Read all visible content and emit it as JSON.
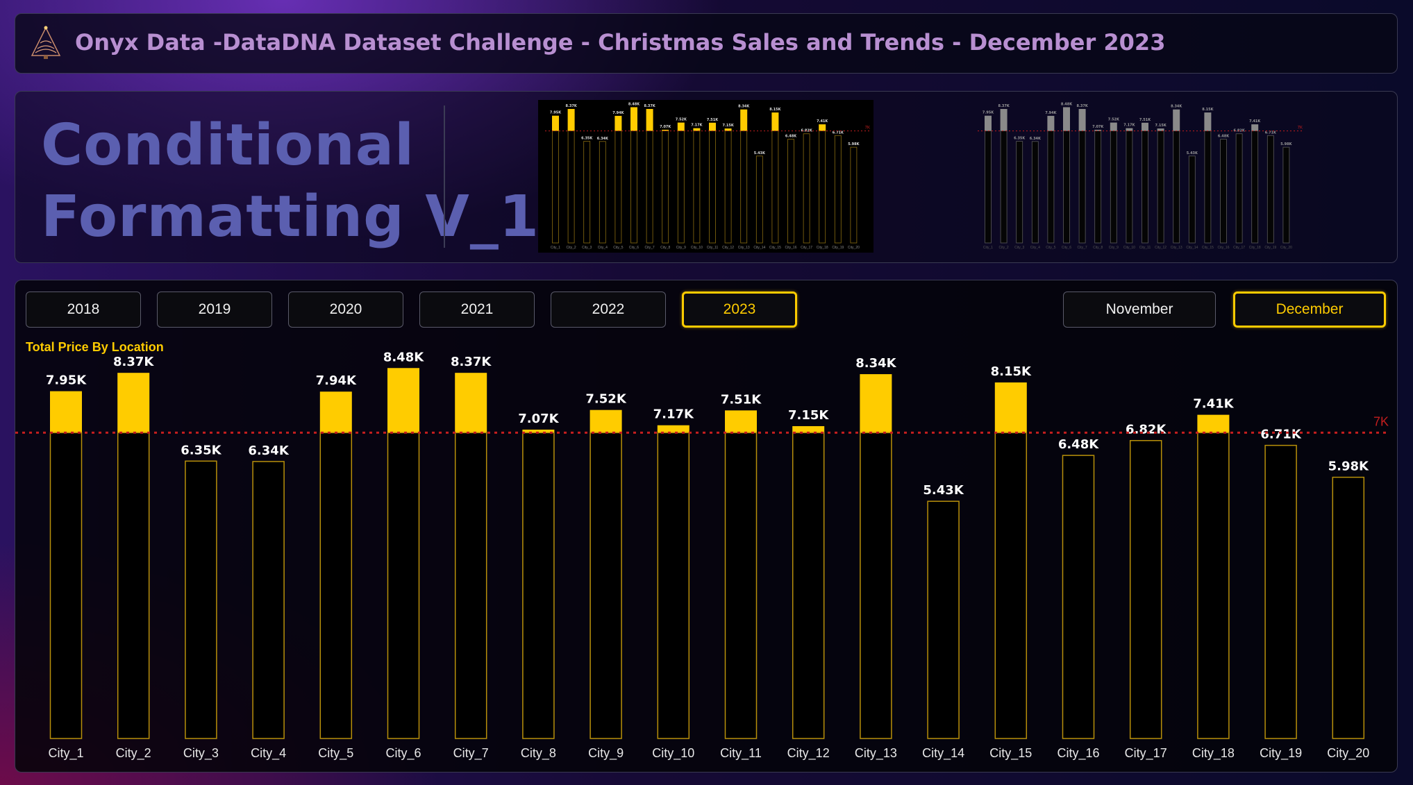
{
  "header": {
    "title": "Onyx Data -DataDNA Dataset Challenge - Christmas Sales and Trends - December 2023",
    "icon": "christmas-tree-icon"
  },
  "hero": {
    "line1": "Conditional",
    "line2": "Formatting V_1"
  },
  "filters": {
    "years": [
      "2018",
      "2019",
      "2020",
      "2021",
      "2022",
      "2023"
    ],
    "selected_year": "2023",
    "months": [
      "November",
      "December"
    ],
    "selected_month": "December"
  },
  "colors": {
    "accent": "#ffcc00",
    "threshold_line": "#c41e1e",
    "preview_gray": "#8a8a8a"
  },
  "chart_data": {
    "type": "bar",
    "title": "Total Price By Location",
    "categories": [
      "City_1",
      "City_2",
      "City_3",
      "City_4",
      "City_5",
      "City_6",
      "City_7",
      "City_8",
      "City_9",
      "City_10",
      "City_11",
      "City_12",
      "City_13",
      "City_14",
      "City_15",
      "City_16",
      "City_17",
      "City_18",
      "City_19",
      "City_20"
    ],
    "values": [
      7950,
      8370,
      6350,
      6340,
      7940,
      8480,
      8370,
      7070,
      7520,
      7170,
      7510,
      7150,
      8340,
      5430,
      8150,
      6480,
      6820,
      7410,
      6710,
      5980
    ],
    "data_labels": [
      "7.95K",
      "8.37K",
      "6.35K",
      "6.34K",
      "7.94K",
      "8.48K",
      "8.37K",
      "7.07K",
      "7.52K",
      "7.17K",
      "7.51K",
      "7.15K",
      "8.34K",
      "5.43K",
      "8.15K",
      "6.48K",
      "6.82K",
      "7.41K",
      "6.71K",
      "5.98K"
    ],
    "threshold": 7000,
    "threshold_label": "7K",
    "ylim": [
      0,
      8500
    ],
    "legend": "none",
    "grid": false
  }
}
